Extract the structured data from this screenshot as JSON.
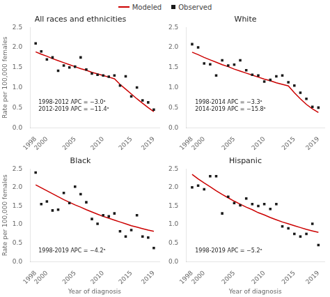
{
  "chart_data": [
    {
      "type": "line",
      "title": "All races and ethnicities",
      "series": [
        {
          "name": "Modeled",
          "type": "line",
          "color": "#cc0000",
          "line_style": "solid",
          "x": [
            1998,
            1999,
            2000,
            2001,
            2002,
            2003,
            2004,
            2005,
            2006,
            2007,
            2008,
            2009,
            2010,
            2011,
            2012,
            2013,
            2014,
            2015,
            2016,
            2017,
            2018,
            2019
          ],
          "values": [
            1.89,
            1.83,
            1.78,
            1.72,
            1.67,
            1.62,
            1.57,
            1.52,
            1.47,
            1.43,
            1.38,
            1.34,
            1.3,
            1.26,
            1.22,
            1.08,
            0.96,
            0.84,
            0.72,
            0.61,
            0.5,
            0.4
          ]
        },
        {
          "name": "Observed",
          "type": "scatter",
          "color": "#1a1a1a",
          "marker": "square",
          "x": [
            1998,
            1999,
            2000,
            2001,
            2002,
            2003,
            2004,
            2005,
            2006,
            2007,
            2008,
            2009,
            2010,
            2011,
            2012,
            2013,
            2014,
            2015,
            2016,
            2017,
            2018,
            2019
          ],
          "values": [
            2.1,
            1.9,
            1.7,
            1.75,
            1.42,
            1.55,
            1.5,
            1.52,
            1.75,
            1.45,
            1.35,
            1.32,
            1.3,
            1.27,
            1.3,
            1.05,
            1.28,
            0.78,
            1.0,
            0.68,
            0.63,
            0.45
          ]
        }
      ],
      "xlim": [
        1997,
        2020
      ],
      "xticks": [
        1998,
        2000,
        2005,
        2010,
        2015,
        2019
      ],
      "ylim": [
        0,
        2.5
      ],
      "yticks": [
        {
          "value": 0,
          "label": "0.0"
        },
        0.5,
        {
          "value": 1.0,
          "label": "1.0"
        },
        1.5,
        {
          "value": 2.0,
          "label": "2.0"
        },
        2.5
      ],
      "ylabel": "Rate per 100,000 females",
      "annotations": [
        {
          "text": "1998-2012 APC = −3.0ᵃ\n2012-2019 APC = −11.4ᵃ",
          "x": 1998.5,
          "y": 0.38
        }
      ],
      "grid": false
    },
    {
      "type": "line",
      "title": "White",
      "series": [
        {
          "name": "Modeled",
          "type": "line",
          "color": "#cc0000",
          "line_style": "solid",
          "x": [
            1998,
            1999,
            2000,
            2001,
            2002,
            2003,
            2004,
            2005,
            2006,
            2007,
            2008,
            2009,
            2010,
            2011,
            2012,
            2013,
            2014,
            2015,
            2016,
            2017,
            2018,
            2019
          ],
          "values": [
            1.88,
            1.82,
            1.75,
            1.69,
            1.63,
            1.57,
            1.52,
            1.46,
            1.41,
            1.36,
            1.31,
            1.26,
            1.21,
            1.17,
            1.12,
            1.08,
            1.04,
            0.87,
            0.72,
            0.58,
            0.47,
            0.38
          ]
        },
        {
          "name": "Observed",
          "type": "scatter",
          "color": "#1a1a1a",
          "marker": "square",
          "x": [
            1998,
            1999,
            2000,
            2001,
            2002,
            2003,
            2004,
            2005,
            2006,
            2007,
            2008,
            2009,
            2010,
            2011,
            2012,
            2013,
            2014,
            2015,
            2016,
            2017,
            2018,
            2019
          ],
          "values": [
            2.08,
            2.0,
            1.6,
            1.58,
            1.3,
            1.68,
            1.55,
            1.57,
            1.68,
            1.43,
            1.32,
            1.3,
            1.15,
            1.19,
            1.28,
            1.3,
            1.13,
            1.05,
            0.87,
            0.72,
            0.52,
            0.5
          ]
        }
      ],
      "xlim": [
        1997,
        2020
      ],
      "xticks": [
        1998,
        2000,
        2005,
        2010,
        2015,
        2019
      ],
      "ylim": [
        0,
        2.5
      ],
      "yticks": [
        {
          "value": 0,
          "label": "0.0"
        },
        0.5,
        {
          "value": 1.0,
          "label": "1.0"
        },
        1.5,
        {
          "value": 2.0,
          "label": "2.0"
        },
        2.5
      ],
      "annotations": [
        {
          "text": "1998-2014 APC = −3.3ᵃ\n2014-2019 APC = −15.8ᵃ",
          "x": 1998.5,
          "y": 0.38
        }
      ],
      "grid": false
    },
    {
      "type": "line",
      "title": "Black",
      "series": [
        {
          "name": "Modeled",
          "type": "line",
          "color": "#cc0000",
          "line_style": "solid",
          "x": [
            1998,
            1999,
            2000,
            2001,
            2002,
            2003,
            2004,
            2005,
            2006,
            2007,
            2008,
            2009,
            2010,
            2011,
            2012,
            2013,
            2014,
            2015,
            2016,
            2017,
            2018,
            2019
          ],
          "values": [
            2.07,
            1.99,
            1.91,
            1.83,
            1.75,
            1.67,
            1.6,
            1.53,
            1.47,
            1.4,
            1.34,
            1.28,
            1.22,
            1.17,
            1.12,
            1.07,
            1.02,
            0.97,
            0.93,
            0.89,
            0.85,
            0.82
          ]
        },
        {
          "name": "Observed",
          "type": "scatter",
          "color": "#1a1a1a",
          "marker": "square",
          "x": [
            1998,
            1999,
            2000,
            2001,
            2002,
            2003,
            2004,
            2005,
            2006,
            2007,
            2008,
            2009,
            2010,
            2011,
            2012,
            2013,
            2014,
            2015,
            2016,
            2017,
            2018,
            2019
          ],
          "values": [
            2.4,
            1.55,
            1.62,
            1.38,
            1.4,
            1.85,
            1.58,
            2.02,
            1.82,
            1.6,
            1.15,
            1.02,
            1.25,
            1.22,
            1.3,
            0.82,
            0.68,
            0.85,
            1.25,
            0.68,
            0.65,
            0.37
          ]
        }
      ],
      "xlim": [
        1997,
        2020
      ],
      "xticks": [
        1998,
        2000,
        2005,
        2010,
        2015,
        2019
      ],
      "ylim": [
        0,
        2.5
      ],
      "yticks": [
        {
          "value": 0,
          "label": "0.0"
        },
        0.5,
        {
          "value": 1.0,
          "label": "1.0"
        },
        1.5,
        {
          "value": 2.0,
          "label": "2.0"
        },
        2.5
      ],
      "ylabel": "Rate per 100,000 females",
      "xlabel": "Year of diagnosis",
      "annotations": [
        {
          "text": "1998-2019 APC = −4.2ᵃ",
          "x": 1998.5,
          "y": 0.22
        }
      ],
      "grid": false
    },
    {
      "type": "line",
      "title": "Hispanic",
      "series": [
        {
          "name": "Modeled",
          "type": "line",
          "color": "#cc0000",
          "line_style": "solid",
          "x": [
            1998,
            1999,
            2000,
            2001,
            2002,
            2003,
            2004,
            2005,
            2006,
            2007,
            2008,
            2009,
            2010,
            2011,
            2012,
            2013,
            2014,
            2015,
            2016,
            2017,
            2018,
            2019
          ],
          "values": [
            2.35,
            2.23,
            2.12,
            2.02,
            1.91,
            1.81,
            1.72,
            1.63,
            1.55,
            1.47,
            1.4,
            1.32,
            1.26,
            1.19,
            1.13,
            1.07,
            1.02,
            0.97,
            0.92,
            0.87,
            0.83,
            0.79
          ]
        },
        {
          "name": "Observed",
          "type": "scatter",
          "color": "#1a1a1a",
          "marker": "square",
          "x": [
            1998,
            1999,
            2000,
            2001,
            2002,
            2003,
            2004,
            2005,
            2006,
            2007,
            2008,
            2009,
            2010,
            2011,
            2012,
            2013,
            2014,
            2015,
            2016,
            2017,
            2018,
            2019
          ],
          "values": [
            2.0,
            2.05,
            1.95,
            2.3,
            2.3,
            1.3,
            1.75,
            1.58,
            1.52,
            1.7,
            1.55,
            1.5,
            1.55,
            1.42,
            1.55,
            0.95,
            0.9,
            0.75,
            0.68,
            0.75,
            1.02,
            0.45
          ]
        }
      ],
      "xlim": [
        1997,
        2020
      ],
      "xticks": [
        1998,
        2000,
        2005,
        2010,
        2015,
        2019
      ],
      "ylim": [
        0,
        2.5
      ],
      "yticks": [
        {
          "value": 0,
          "label": "0.0"
        },
        0.5,
        {
          "value": 1.0,
          "label": "1.0"
        },
        1.5,
        {
          "value": 2.0,
          "label": "2.0"
        },
        2.5
      ],
      "xlabel": "Year of diagnosis",
      "annotations": [
        {
          "text": "1998-2019 APC = −5.2ᵃ",
          "x": 1998.5,
          "y": 0.22
        }
      ],
      "grid": false
    }
  ]
}
